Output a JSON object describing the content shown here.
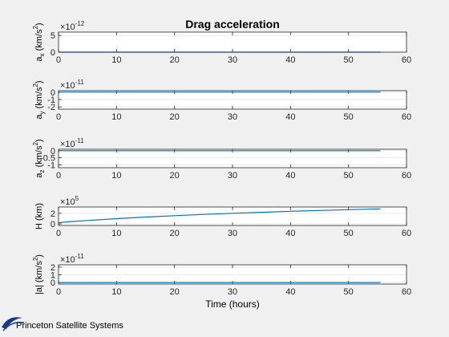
{
  "chart_data": {
    "type": "line",
    "title": "Drag acceleration",
    "xlabel": "Time (hours)",
    "xlim": [
      0,
      60
    ],
    "xticks": [
      0,
      10,
      20,
      30,
      40,
      50,
      60
    ],
    "line_color": "#0072bd",
    "panels": [
      {
        "ylabel_main": "a",
        "ylabel_sub": "x",
        "ylabel_unit": "(km/s",
        "ylabel_sup": "2",
        "ylabel_close": ")",
        "exponent_prefix": "×10",
        "exponent": "-12",
        "ylim": [
          0,
          6
        ],
        "yticks": [
          0,
          5
        ],
        "ytick_labels": [
          "0",
          "5"
        ],
        "grid": "y",
        "x": [
          0,
          55.5
        ],
        "y": [
          0,
          0
        ]
      },
      {
        "ylabel_main": "a",
        "ylabel_sub": "y",
        "ylabel_unit": "(km/s",
        "ylabel_sup": "2",
        "ylabel_close": ")",
        "exponent_prefix": "×10",
        "exponent": "-11",
        "ylim": [
          -2.3,
          0.2
        ],
        "yticks": [
          0,
          -1,
          -2
        ],
        "ytick_labels": [
          "0",
          "-1",
          "-2"
        ],
        "grid": "y",
        "x": [
          0,
          55.5
        ],
        "y": [
          0,
          0
        ]
      },
      {
        "ylabel_main": "a",
        "ylabel_sub": "z",
        "ylabel_unit": "(km/s",
        "ylabel_sup": "2",
        "ylabel_close": ")",
        "exponent_prefix": "×10",
        "exponent": "-11",
        "ylim": [
          -1.2,
          0.1
        ],
        "yticks": [
          0,
          -0.5,
          -1
        ],
        "ytick_labels": [
          "0",
          "-0.5",
          "-1"
        ],
        "grid": "y",
        "x": [
          0,
          55.5
        ],
        "y": [
          0,
          0
        ]
      },
      {
        "ylabel_main": "H (km)",
        "ylabel_sub": "",
        "ylabel_unit": "",
        "ylabel_sup": "",
        "ylabel_close": "",
        "exponent_prefix": "×10",
        "exponent": "5",
        "ylim": [
          -0.3,
          3.2
        ],
        "yticks": [
          0,
          2
        ],
        "ytick_labels": [
          "0",
          "2"
        ],
        "grid": "y",
        "x": [
          0,
          2,
          5,
          10,
          15,
          20,
          25,
          30,
          35,
          40,
          45,
          50,
          55.5
        ],
        "y": [
          0.2,
          0.45,
          0.65,
          1.0,
          1.3,
          1.55,
          1.8,
          2.02,
          2.2,
          2.4,
          2.55,
          2.7,
          2.85
        ]
      },
      {
        "ylabel_main": "|a| (km/s",
        "ylabel_sub": "",
        "ylabel_unit": "",
        "ylabel_sup": "2",
        "ylabel_close": ")",
        "exponent_prefix": "×10",
        "exponent": "-11",
        "ylim": [
          -0.2,
          2.3
        ],
        "yticks": [
          0,
          1,
          2
        ],
        "ytick_labels": [
          "0",
          "1",
          "2"
        ],
        "grid": "y",
        "x": [
          0,
          55.5
        ],
        "y": [
          0,
          0
        ]
      }
    ]
  },
  "footer": {
    "logo_text": "Princeton Satellite Systems"
  },
  "colors": {
    "background": "#f0f0f0",
    "axes_bg": "#ffffff",
    "line": "#0072bd",
    "grid": "#e3e3e3",
    "logo_blue": "#1a3a8a"
  }
}
